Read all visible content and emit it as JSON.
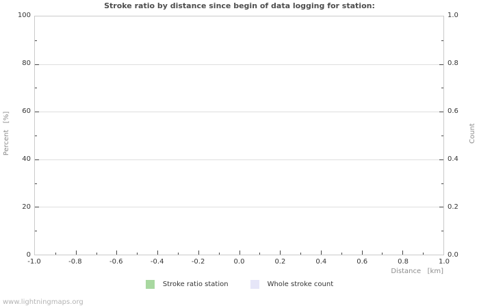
{
  "watermark": "www.lightningmaps.org",
  "chart_data": {
    "type": "line",
    "title": "Stroke ratio by distance since begin of data logging for station:",
    "xlabel": "Distance   [km]",
    "ylabel": "Percent   [%]",
    "y2label": "Count",
    "xlim": [
      -1.0,
      1.0
    ],
    "ylim": [
      0,
      100
    ],
    "y2lim": [
      0.0,
      1.0
    ],
    "x_tick_labels": [
      "-1.0",
      "-0.8",
      "-0.6",
      "-0.4",
      "-0.2",
      "0.0",
      "0.2",
      "0.4",
      "0.6",
      "0.8",
      "1.0"
    ],
    "y_tick_labels": [
      "0",
      "20",
      "40",
      "60",
      "80",
      "100"
    ],
    "y2_tick_labels": [
      "0.0",
      "0.2",
      "0.4",
      "0.6",
      "0.8",
      "1.0"
    ],
    "x_minor_divisions": 20,
    "y_minor_divisions": 10,
    "y2_minor_divisions": 10,
    "grid": true,
    "legend_position": "bottom-center",
    "series": [
      {
        "name": "Stroke ratio station",
        "color": "#a8d8a0",
        "values": []
      },
      {
        "name": "Whole stroke count",
        "color": "#e6e6f8",
        "values": []
      }
    ],
    "colors": {
      "title": "#4d4d4d",
      "axis_label": "#8c8c8c",
      "tick_label": "#333333",
      "grid": "#dedede",
      "border": "#c9c9c9",
      "watermark": "#b3b3b3"
    }
  }
}
